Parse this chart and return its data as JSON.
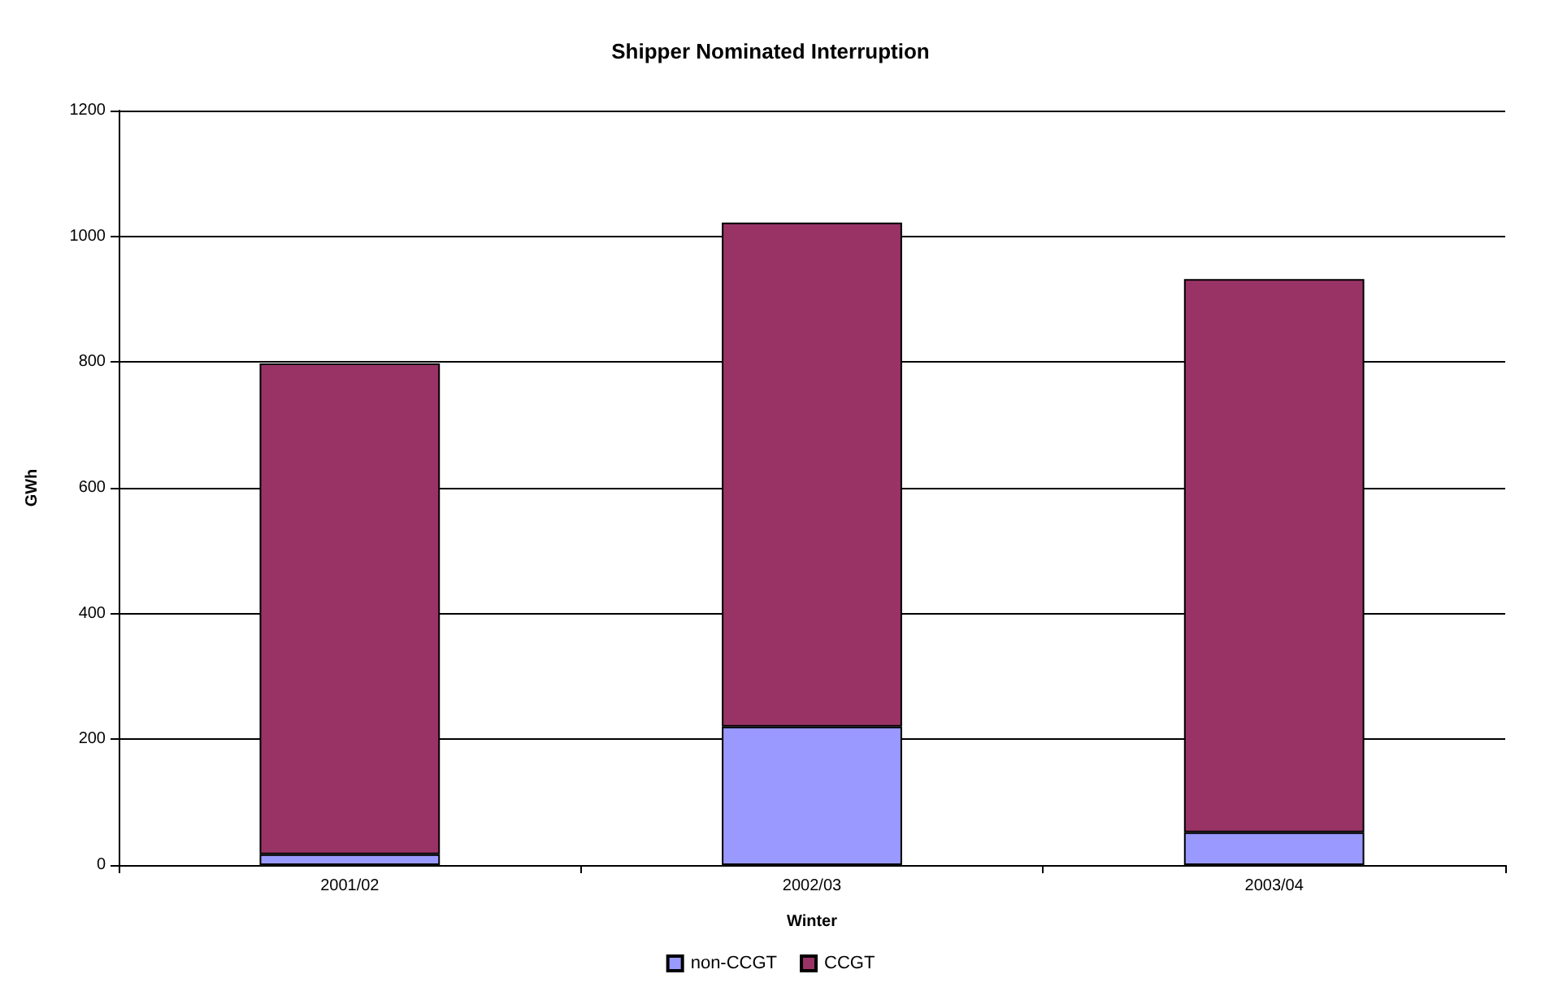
{
  "chart_data": {
    "type": "bar",
    "title": "Shipper Nominated Interruption",
    "xlabel": "Winter",
    "ylabel": "GWh",
    "categories": [
      "2001/02",
      "2002/03",
      "2003/04"
    ],
    "series": [
      {
        "name": "non-CCGT",
        "color": "#9999ff",
        "values": [
          17,
          220,
          52
        ]
      },
      {
        "name": "CCGT",
        "color": "#993366",
        "values": [
          781,
          802,
          880
        ]
      }
    ],
    "stacked": true,
    "ylim": [
      0,
      1200
    ],
    "yticks": [
      0,
      200,
      400,
      600,
      800,
      1000,
      1200
    ],
    "grid": "y",
    "legend": "bottom"
  }
}
